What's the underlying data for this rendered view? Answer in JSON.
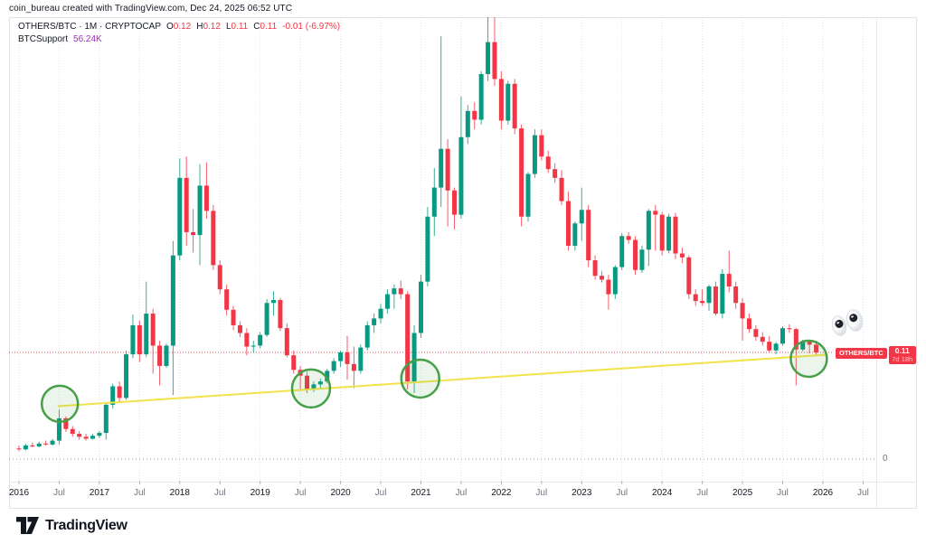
{
  "attribution": "coin_bureau created with TradingView.com, Dec 24, 2025 06:52 UTC",
  "legend": {
    "series_title": "OTHERS/BTC · 1M · CRYPTOCAP",
    "o_label": "O",
    "o_value": "0.12",
    "h_label": "H",
    "h_value": "0.12",
    "l_label": "L",
    "l_value": "0.11",
    "c_label": "C",
    "c_value": "0.11",
    "change": "-0.01 (-6.97%)",
    "indicator_name": "BTCSupport",
    "indicator_value": "56.24K"
  },
  "price_scale": {
    "zero_label": "0"
  },
  "last_price_label": {
    "symbol": "OTHERS/BTC",
    "price": "0.11",
    "countdown": "7d 18h"
  },
  "logo": {
    "text": "TradingView"
  },
  "x_axis": {
    "ticks": [
      {
        "label": "2016",
        "major": true
      },
      {
        "label": "Jul",
        "major": false
      },
      {
        "label": "2017",
        "major": true
      },
      {
        "label": "Jul",
        "major": false
      },
      {
        "label": "2018",
        "major": true
      },
      {
        "label": "Jul",
        "major": false
      },
      {
        "label": "2019",
        "major": true
      },
      {
        "label": "Jul",
        "major": false
      },
      {
        "label": "2020",
        "major": true
      },
      {
        "label": "Jul",
        "major": false
      },
      {
        "label": "2021",
        "major": true
      },
      {
        "label": "Jul",
        "major": false
      },
      {
        "label": "2022",
        "major": true
      },
      {
        "label": "Jul",
        "major": false
      },
      {
        "label": "2023",
        "major": true
      },
      {
        "label": "Jul",
        "major": false
      },
      {
        "label": "2024",
        "major": true
      },
      {
        "label": "Jul",
        "major": false
      },
      {
        "label": "2025",
        "major": true
      },
      {
        "label": "Jul",
        "major": false
      },
      {
        "label": "2026",
        "major": true
      },
      {
        "label": "Jul",
        "major": false
      }
    ]
  },
  "colors": {
    "up": "#089981",
    "down": "#f23645",
    "trendline": "#f3e34a",
    "circle": "#45a048",
    "price_line": "#f23645",
    "grid": "#c9ccd4",
    "zero_line": "#9598a1"
  },
  "chart_data": {
    "type": "candlestick",
    "symbol": "OTHERS/BTC",
    "timeframe": "1M",
    "exchange": "CRYPTOCAP",
    "ylim": [
      0,
      0.46
    ],
    "y_gridline": 0,
    "columns": [
      "month",
      "open",
      "high",
      "low",
      "close"
    ],
    "months": [
      [
        "2016-01",
        0.011,
        0.014,
        0.008,
        0.01
      ],
      [
        "2016-02",
        0.01,
        0.016,
        0.009,
        0.014
      ],
      [
        "2016-03",
        0.014,
        0.017,
        0.012,
        0.013
      ],
      [
        "2016-04",
        0.013,
        0.018,
        0.012,
        0.016
      ],
      [
        "2016-05",
        0.016,
        0.019,
        0.014,
        0.015
      ],
      [
        "2016-06",
        0.015,
        0.021,
        0.014,
        0.019
      ],
      [
        "2016-07",
        0.019,
        0.051,
        0.015,
        0.042
      ],
      [
        "2016-08",
        0.042,
        0.044,
        0.028,
        0.031
      ],
      [
        "2016-09",
        0.031,
        0.034,
        0.023,
        0.026
      ],
      [
        "2016-10",
        0.026,
        0.029,
        0.02,
        0.023
      ],
      [
        "2016-11",
        0.023,
        0.026,
        0.019,
        0.021
      ],
      [
        "2016-12",
        0.021,
        0.026,
        0.02,
        0.024
      ],
      [
        "2017-01",
        0.024,
        0.029,
        0.022,
        0.027
      ],
      [
        "2017-02",
        0.027,
        0.058,
        0.02,
        0.056
      ],
      [
        "2017-03",
        0.056,
        0.078,
        0.052,
        0.075
      ],
      [
        "2017-04",
        0.075,
        0.08,
        0.058,
        0.063
      ],
      [
        "2017-05",
        0.063,
        0.112,
        0.061,
        0.108
      ],
      [
        "2017-06",
        0.108,
        0.149,
        0.104,
        0.138
      ],
      [
        "2017-07",
        0.138,
        0.143,
        0.1,
        0.108
      ],
      [
        "2017-08",
        0.108,
        0.183,
        0.105,
        0.15
      ],
      [
        "2017-09",
        0.15,
        0.155,
        0.088,
        0.117
      ],
      [
        "2017-10",
        0.117,
        0.122,
        0.076,
        0.096
      ],
      [
        "2017-11",
        0.096,
        0.119,
        0.094,
        0.117
      ],
      [
        "2017-12",
        0.117,
        0.225,
        0.066,
        0.21
      ],
      [
        "2018-01",
        0.21,
        0.31,
        0.205,
        0.29
      ],
      [
        "2018-02",
        0.29,
        0.312,
        0.22,
        0.234
      ],
      [
        "2018-03",
        0.234,
        0.258,
        0.213,
        0.231
      ],
      [
        "2018-04",
        0.231,
        0.304,
        0.2,
        0.282
      ],
      [
        "2018-05",
        0.282,
        0.306,
        0.248,
        0.256
      ],
      [
        "2018-06",
        0.256,
        0.262,
        0.195,
        0.2
      ],
      [
        "2018-07",
        0.2,
        0.205,
        0.17,
        0.175
      ],
      [
        "2018-08",
        0.175,
        0.18,
        0.148,
        0.154
      ],
      [
        "2018-09",
        0.154,
        0.158,
        0.133,
        0.138
      ],
      [
        "2018-10",
        0.138,
        0.142,
        0.126,
        0.13
      ],
      [
        "2018-11",
        0.13,
        0.135,
        0.107,
        0.116
      ],
      [
        "2018-12",
        0.116,
        0.122,
        0.11,
        0.117
      ],
      [
        "2019-01",
        0.117,
        0.131,
        0.114,
        0.128
      ],
      [
        "2019-02",
        0.128,
        0.165,
        0.126,
        0.161
      ],
      [
        "2019-03",
        0.161,
        0.173,
        0.148,
        0.164
      ],
      [
        "2019-04",
        0.164,
        0.166,
        0.132,
        0.135
      ],
      [
        "2019-05",
        0.135,
        0.14,
        0.105,
        0.107
      ],
      [
        "2019-06",
        0.107,
        0.112,
        0.088,
        0.092
      ],
      [
        "2019-07",
        0.092,
        0.096,
        0.072,
        0.086
      ],
      [
        "2019-08",
        0.086,
        0.09,
        0.068,
        0.072
      ],
      [
        "2019-09",
        0.072,
        0.08,
        0.069,
        0.077
      ],
      [
        "2019-10",
        0.077,
        0.083,
        0.072,
        0.08
      ],
      [
        "2019-11",
        0.08,
        0.093,
        0.078,
        0.091
      ],
      [
        "2019-12",
        0.091,
        0.104,
        0.088,
        0.101
      ],
      [
        "2020-01",
        0.101,
        0.112,
        0.095,
        0.11
      ],
      [
        "2020-02",
        0.11,
        0.127,
        0.082,
        0.098
      ],
      [
        "2020-03",
        0.098,
        0.116,
        0.073,
        0.091
      ],
      [
        "2020-04",
        0.091,
        0.118,
        0.088,
        0.115
      ],
      [
        "2020-05",
        0.115,
        0.142,
        0.112,
        0.138
      ],
      [
        "2020-06",
        0.138,
        0.15,
        0.13,
        0.145
      ],
      [
        "2020-07",
        0.145,
        0.16,
        0.14,
        0.155
      ],
      [
        "2020-08",
        0.155,
        0.175,
        0.15,
        0.17
      ],
      [
        "2020-09",
        0.17,
        0.18,
        0.155,
        0.176
      ],
      [
        "2020-10",
        0.176,
        0.184,
        0.165,
        0.17
      ],
      [
        "2020-11",
        0.17,
        0.173,
        0.072,
        0.08
      ],
      [
        "2020-12",
        0.08,
        0.138,
        0.068,
        0.13
      ],
      [
        "2021-01",
        0.13,
        0.19,
        0.125,
        0.183
      ],
      [
        "2021-02",
        0.183,
        0.26,
        0.178,
        0.25
      ],
      [
        "2021-03",
        0.25,
        0.3,
        0.23,
        0.28
      ],
      [
        "2021-04",
        0.28,
        0.436,
        0.26,
        0.32
      ],
      [
        "2021-05",
        0.32,
        0.33,
        0.24,
        0.277
      ],
      [
        "2021-06",
        0.277,
        0.28,
        0.237,
        0.252
      ],
      [
        "2021-07",
        0.252,
        0.374,
        0.248,
        0.332
      ],
      [
        "2021-08",
        0.332,
        0.365,
        0.325,
        0.359
      ],
      [
        "2021-09",
        0.359,
        0.368,
        0.34,
        0.35
      ],
      [
        "2021-10",
        0.35,
        0.4,
        0.345,
        0.397
      ],
      [
        "2021-11",
        0.397,
        0.456,
        0.39,
        0.43
      ],
      [
        "2021-12",
        0.43,
        0.459,
        0.385,
        0.392
      ],
      [
        "2022-01",
        0.392,
        0.4,
        0.34,
        0.349
      ],
      [
        "2022-02",
        0.349,
        0.39,
        0.345,
        0.387
      ],
      [
        "2022-03",
        0.387,
        0.392,
        0.335,
        0.341
      ],
      [
        "2022-04",
        0.341,
        0.345,
        0.24,
        0.25
      ],
      [
        "2022-05",
        0.25,
        0.296,
        0.245,
        0.294
      ],
      [
        "2022-06",
        0.294,
        0.34,
        0.29,
        0.334
      ],
      [
        "2022-07",
        0.334,
        0.34,
        0.308,
        0.312
      ],
      [
        "2022-08",
        0.312,
        0.318,
        0.295,
        0.299
      ],
      [
        "2022-09",
        0.299,
        0.305,
        0.285,
        0.29
      ],
      [
        "2022-10",
        0.29,
        0.298,
        0.262,
        0.266
      ],
      [
        "2022-11",
        0.266,
        0.276,
        0.215,
        0.22
      ],
      [
        "2022-12",
        0.22,
        0.245,
        0.215,
        0.243
      ],
      [
        "2023-01",
        0.243,
        0.28,
        0.225,
        0.257
      ],
      [
        "2023-02",
        0.257,
        0.262,
        0.198,
        0.205
      ],
      [
        "2023-03",
        0.205,
        0.21,
        0.185,
        0.189
      ],
      [
        "2023-04",
        0.189,
        0.194,
        0.182,
        0.185
      ],
      [
        "2023-05",
        0.185,
        0.19,
        0.154,
        0.17
      ],
      [
        "2023-06",
        0.17,
        0.2,
        0.165,
        0.198
      ],
      [
        "2023-07",
        0.198,
        0.233,
        0.195,
        0.23
      ],
      [
        "2023-08",
        0.23,
        0.234,
        0.222,
        0.226
      ],
      [
        "2023-09",
        0.226,
        0.23,
        0.19,
        0.195
      ],
      [
        "2023-10",
        0.195,
        0.22,
        0.192,
        0.216
      ],
      [
        "2023-11",
        0.216,
        0.258,
        0.199,
        0.256
      ],
      [
        "2023-12",
        0.256,
        0.262,
        0.215,
        0.252
      ],
      [
        "2024-01",
        0.252,
        0.255,
        0.21,
        0.215
      ],
      [
        "2024-02",
        0.215,
        0.253,
        0.212,
        0.25
      ],
      [
        "2024-03",
        0.25,
        0.254,
        0.206,
        0.212
      ],
      [
        "2024-04",
        0.212,
        0.218,
        0.202,
        0.208
      ],
      [
        "2024-05",
        0.208,
        0.21,
        0.165,
        0.17
      ],
      [
        "2024-06",
        0.17,
        0.175,
        0.158,
        0.163
      ],
      [
        "2024-07",
        0.163,
        0.175,
        0.158,
        0.161
      ],
      [
        "2024-08",
        0.161,
        0.18,
        0.153,
        0.178
      ],
      [
        "2024-09",
        0.178,
        0.183,
        0.148,
        0.15
      ],
      [
        "2024-10",
        0.15,
        0.196,
        0.145,
        0.191
      ],
      [
        "2024-11",
        0.191,
        0.215,
        0.172,
        0.178
      ],
      [
        "2024-12",
        0.178,
        0.183,
        0.155,
        0.161
      ],
      [
        "2025-01",
        0.161,
        0.166,
        0.122,
        0.145
      ],
      [
        "2025-02",
        0.145,
        0.15,
        0.13,
        0.134
      ],
      [
        "2025-03",
        0.134,
        0.138,
        0.122,
        0.126
      ],
      [
        "2025-04",
        0.126,
        0.131,
        0.117,
        0.121
      ],
      [
        "2025-05",
        0.121,
        0.127,
        0.11,
        0.112
      ],
      [
        "2025-06",
        0.112,
        0.121,
        0.108,
        0.119
      ],
      [
        "2025-07",
        0.119,
        0.137,
        0.117,
        0.135
      ],
      [
        "2025-08",
        0.135,
        0.139,
        0.13,
        0.134
      ],
      [
        "2025-09",
        0.134,
        0.135,
        0.076,
        0.113
      ],
      [
        "2025-10",
        0.113,
        0.123,
        0.111,
        0.121
      ],
      [
        "2025-11",
        0.121,
        0.122,
        0.109,
        0.118
      ],
      [
        "2025-12",
        0.118,
        0.12,
        0.107,
        0.11
      ]
    ],
    "annotations": {
      "price_line": 0.11,
      "trendline": {
        "name": "BTCSupport",
        "i1": 5.9,
        "p1": 0.0545,
        "i2": 120.4,
        "p2": 0.1075
      },
      "circles": [
        {
          "i": 6.1,
          "p": 0.057,
          "r": 20
        },
        {
          "i": 43.6,
          "p": 0.0728,
          "r": 21
        },
        {
          "i": 59.9,
          "p": 0.083,
          "r": 21
        },
        {
          "i": 117.9,
          "p": 0.1035,
          "r": 20
        }
      ],
      "eyes_emoji": {
        "glyph": "eyes",
        "x": 919,
        "y": 339
      }
    }
  }
}
